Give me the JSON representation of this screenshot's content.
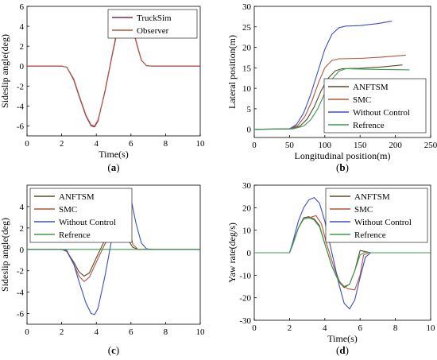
{
  "colors": {
    "truck": "#7a2a55",
    "observer": "#b5543d",
    "anftsm": "#5a4a2a",
    "smc": "#b5543d",
    "without": "#3a4fc8",
    "ref": "#3c9a4a"
  },
  "chart_data": [
    {
      "id": "a",
      "type": "line",
      "caption": "(a)",
      "xlabel": "Time(s)",
      "ylabel": "Sideslip angle(deg)",
      "xlim": [
        0,
        10
      ],
      "ylim": [
        -7,
        6
      ],
      "xticks": [
        "0",
        "2",
        "4",
        "6",
        "8",
        "10"
      ],
      "yticks": [
        "-6",
        "-4",
        "-2",
        "0",
        "2",
        "4",
        "6"
      ],
      "legend_position": "top-right",
      "series": [
        {
          "name": "TruckSim",
          "color": "#7a2a55",
          "x": [
            0,
            2,
            2.3,
            2.7,
            3.0,
            3.4,
            3.7,
            3.9,
            4.1,
            4.5,
            4.9,
            5.2,
            5.5,
            5.8,
            6.0,
            6.3,
            6.6,
            6.9,
            7.2,
            8,
            10
          ],
          "y": [
            0,
            0,
            -0.1,
            -1.4,
            -3.0,
            -5.0,
            -6.0,
            -6.1,
            -5.5,
            -2.5,
            1.0,
            3.6,
            5.1,
            5.6,
            4.8,
            2.5,
            0.6,
            0.05,
            0,
            0,
            0
          ]
        },
        {
          "name": "Observer",
          "color": "#b5543d",
          "x": [
            0,
            2,
            2.3,
            2.7,
            3.0,
            3.4,
            3.7,
            3.9,
            4.1,
            4.5,
            4.9,
            5.2,
            5.5,
            5.8,
            6.0,
            6.3,
            6.6,
            6.9,
            7.2,
            8,
            10
          ],
          "y": [
            0,
            0,
            -0.1,
            -1.3,
            -2.9,
            -4.9,
            -5.9,
            -6.0,
            -5.4,
            -2.6,
            0.9,
            3.4,
            4.9,
            5.4,
            4.7,
            2.4,
            0.6,
            0.05,
            0,
            0,
            0
          ]
        }
      ]
    },
    {
      "id": "b",
      "type": "line",
      "caption": "(b)",
      "xlabel": "Longitudinal position(m)",
      "ylabel": "Lateral position(m)",
      "xlim": [
        0,
        250
      ],
      "ylim": [
        -2,
        30
      ],
      "xticks": [
        "0",
        "50",
        "100",
        "150",
        "200",
        "250"
      ],
      "yticks": [
        "0",
        "5",
        "10",
        "15",
        "20",
        "25",
        "30"
      ],
      "legend_position": "lower-right",
      "series": [
        {
          "name": "ANFTSM",
          "color": "#5a4a2a",
          "x": [
            0,
            50,
            65,
            75,
            85,
            95,
            105,
            115,
            125,
            150,
            180,
            210
          ],
          "y": [
            0,
            0.1,
            0.8,
            2.5,
            5.5,
            9.5,
            12.5,
            14.3,
            14.8,
            14.9,
            15.2,
            15.7
          ]
        },
        {
          "name": "SMC",
          "color": "#b5543d",
          "x": [
            0,
            50,
            62,
            72,
            82,
            92,
            100,
            110,
            120,
            150,
            180,
            215
          ],
          "y": [
            0,
            0.1,
            1.0,
            3.2,
            7.0,
            11.8,
            15.0,
            16.8,
            17.2,
            17.3,
            17.6,
            18.1
          ]
        },
        {
          "name": "Without Control",
          "color": "#3a4fc8",
          "x": [
            0,
            50,
            60,
            70,
            80,
            90,
            100,
            110,
            120,
            130,
            150,
            175,
            195
          ],
          "y": [
            0,
            0.1,
            1.2,
            4.0,
            8.5,
            14.0,
            19.5,
            23.2,
            24.8,
            25.2,
            25.3,
            25.8,
            26.4
          ]
        },
        {
          "name": "Refrence",
          "color": "#3c9a4a",
          "x": [
            0,
            55,
            70,
            80,
            90,
            100,
            110,
            120,
            130,
            150,
            180,
            220
          ],
          "y": [
            0,
            0.1,
            0.8,
            2.3,
            5.0,
            8.8,
            12.2,
            14.2,
            14.8,
            14.7,
            14.6,
            14.5
          ]
        }
      ]
    },
    {
      "id": "c",
      "type": "line",
      "caption": "(c)",
      "xlabel": "",
      "ylabel": "Sideslip angle(deg)",
      "xlim": [
        0,
        10
      ],
      "ylim": [
        -7,
        6
      ],
      "xticks": [
        "0",
        "2",
        "4",
        "6",
        "8",
        "10"
      ],
      "yticks": [
        "-6",
        "-4",
        "-2",
        "0",
        "2",
        "4"
      ],
      "legend_position": "top-left",
      "series": [
        {
          "name": "ANFTSM",
          "color": "#5a4a2a",
          "x": [
            0,
            2,
            2.3,
            2.7,
            3.0,
            3.3,
            3.6,
            4.0,
            4.5,
            5.0,
            5.3,
            5.5,
            5.8,
            6.1,
            6.4,
            10
          ],
          "y": [
            0,
            0,
            -0.2,
            -1.2,
            -2.1,
            -2.5,
            -2.2,
            -0.8,
            0.9,
            2.1,
            2.5,
            2.2,
            1.0,
            0.2,
            0,
            0
          ]
        },
        {
          "name": "SMC",
          "color": "#b5543d",
          "x": [
            0,
            2,
            2.3,
            2.7,
            3.0,
            3.3,
            3.6,
            4.0,
            4.5,
            5.0,
            5.4,
            5.7,
            5.9,
            6.1,
            6.4,
            10
          ],
          "y": [
            0,
            0,
            -0.2,
            -1.4,
            -2.5,
            -3.0,
            -2.6,
            -1.2,
            0.5,
            1.6,
            2.5,
            2.9,
            2.0,
            0.5,
            0,
            0
          ]
        },
        {
          "name": "Without Control",
          "color": "#3a4fc8",
          "x": [
            0,
            2,
            2.3,
            2.7,
            3.0,
            3.4,
            3.7,
            3.9,
            4.1,
            4.5,
            4.9,
            5.2,
            5.5,
            5.8,
            6.0,
            6.3,
            6.6,
            6.9,
            7.2,
            10
          ],
          "y": [
            0,
            0,
            -0.1,
            -1.4,
            -3.0,
            -5.0,
            -6.0,
            -6.1,
            -5.5,
            -2.5,
            1.0,
            3.6,
            5.0,
            5.4,
            4.7,
            2.4,
            0.6,
            0.05,
            0,
            0
          ]
        },
        {
          "name": "Refrence",
          "color": "#3c9a4a",
          "x": [
            0,
            10
          ],
          "y": [
            0,
            0
          ]
        }
      ]
    },
    {
      "id": "d",
      "type": "line",
      "caption": "(d)",
      "xlabel": "Time(s)",
      "ylabel": "Yaw rate(deg/s)",
      "xlim": [
        0,
        10
      ],
      "ylim": [
        -30,
        30
      ],
      "xticks": [
        "0",
        "2",
        "4",
        "6",
        "8",
        "10"
      ],
      "yticks": [
        "-30",
        "-20",
        "-10",
        "0",
        "10",
        "20",
        "30"
      ],
      "legend_position": "top-right",
      "series": [
        {
          "name": "ANFTSM",
          "color": "#5a4a2a",
          "x": [
            0,
            2,
            2.2,
            2.5,
            2.8,
            3.1,
            3.4,
            3.7,
            4.0,
            4.4,
            4.8,
            5.1,
            5.4,
            5.7,
            6.0,
            6.3,
            6.6,
            10
          ],
          "y": [
            0,
            0,
            4,
            11,
            15.5,
            16,
            15,
            12,
            4,
            -6,
            -13,
            -15.5,
            -14,
            -8,
            1,
            0.5,
            0,
            0
          ]
        },
        {
          "name": "SMC",
          "color": "#b5543d",
          "x": [
            0,
            2,
            2.2,
            2.5,
            2.8,
            3.1,
            3.5,
            3.8,
            4.1,
            4.5,
            4.9,
            5.3,
            5.7,
            6.0,
            6.2,
            6.5,
            10
          ],
          "y": [
            0,
            0,
            4,
            11,
            15,
            15.5,
            16.5,
            13,
            4,
            -6,
            -14,
            -16,
            -16.5,
            -10,
            -1,
            0,
            0
          ]
        },
        {
          "name": "Without Control",
          "color": "#3a4fc8",
          "x": [
            0,
            2,
            2.2,
            2.5,
            2.8,
            3.1,
            3.4,
            3.7,
            4.0,
            4.4,
            4.8,
            5.1,
            5.4,
            5.7,
            6.0,
            6.3,
            6.6,
            10
          ],
          "y": [
            0,
            0,
            5,
            14,
            20,
            23.5,
            24.5,
            22,
            14,
            0,
            -14,
            -22.5,
            -25,
            -21,
            -11,
            -2,
            0,
            0
          ]
        },
        {
          "name": "Refrence",
          "color": "#3c9a4a",
          "x": [
            0,
            2,
            2.2,
            2.5,
            2.8,
            3.1,
            3.4,
            3.7,
            4.0,
            4.4,
            4.8,
            5.1,
            5.4,
            5.7,
            6.0,
            6.3,
            6.6,
            10
          ],
          "y": [
            0,
            0,
            4,
            11,
            15,
            15.5,
            14.5,
            11.5,
            4,
            -6,
            -12.5,
            -15,
            -14,
            -8,
            -1,
            0.3,
            0,
            0
          ]
        }
      ]
    }
  ]
}
